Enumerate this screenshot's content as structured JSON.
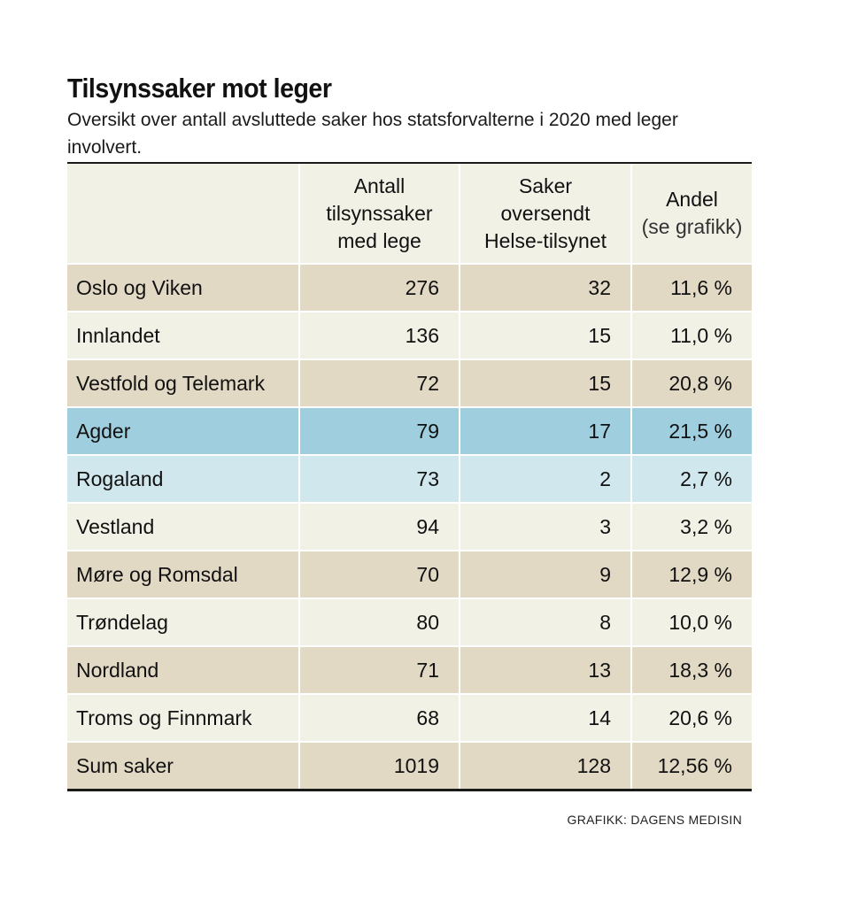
{
  "title": "Tilsynssaker mot leger",
  "subtitle": "Oversikt over antall avsluttede saker hos statsforvalterne i 2020 med leger involvert.",
  "colors": {
    "beige": "#e2d9c5",
    "light": "#f2f1e6",
    "highlight_blue": "#9fcfdf",
    "pale_blue": "#d1e7ee"
  },
  "chart_data": {
    "type": "table",
    "title": "Tilsynssaker mot leger",
    "columns": [
      {
        "lines": [
          ""
        ]
      },
      {
        "lines": [
          "Antall",
          "tilsynssaker",
          "med lege"
        ]
      },
      {
        "lines": [
          "Saker",
          "oversendt",
          "Helse-tilsynet"
        ]
      },
      {
        "lines": [
          "Andel",
          "(se grafikk)"
        ]
      }
    ],
    "rows": [
      {
        "region": "Oslo og Viken",
        "cases": "276",
        "sent": "32",
        "share": "11,6 %",
        "style": "beige"
      },
      {
        "region": "Innlandet",
        "cases": "136",
        "sent": "15",
        "share": "11,0 %",
        "style": "light"
      },
      {
        "region": "Vestfold og Telemark",
        "cases": "72",
        "sent": "15",
        "share": "20,8 %",
        "style": "beige"
      },
      {
        "region": "Agder",
        "cases": "79",
        "sent": "17",
        "share": "21,5 %",
        "style": "blue"
      },
      {
        "region": "Rogaland",
        "cases": "73",
        "sent": "2",
        "share": "2,7 %",
        "style": "paleblue"
      },
      {
        "region": "Vestland",
        "cases": "94",
        "sent": "3",
        "share": "3,2 %",
        "style": "light"
      },
      {
        "region": "Møre og Romsdal",
        "cases": "70",
        "sent": "9",
        "share": "12,9 %",
        "style": "beige"
      },
      {
        "region": "Trøndelag",
        "cases": "80",
        "sent": "8",
        "share": "10,0 %",
        "style": "light"
      },
      {
        "region": "Nordland",
        "cases": "71",
        "sent": "13",
        "share": "18,3 %",
        "style": "beige"
      },
      {
        "region": "Troms og Finnmark",
        "cases": "68",
        "sent": "14",
        "share": "20,6 %",
        "style": "light"
      }
    ],
    "total": {
      "region": "Sum saker",
      "cases": "1019",
      "sent": "128",
      "share": "12,56 %",
      "style": "beige"
    }
  },
  "credit": "GRAFIKK: DAGENS MEDISIN"
}
